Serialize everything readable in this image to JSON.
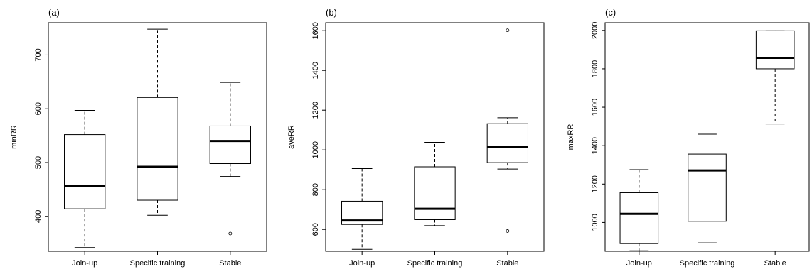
{
  "chart_data": [
    {
      "type": "boxplot",
      "panel_label": "(a)",
      "ylabel": "minRR",
      "xlabel": "",
      "categories": [
        "Join-up",
        "Specific training",
        "Stable"
      ],
      "ylim": [
        335,
        760
      ],
      "yticks": [
        400,
        500,
        600,
        700
      ],
      "boxes": [
        {
          "whisker_low": 342,
          "q1": 414,
          "median": 457,
          "q3": 552,
          "whisker_high": 597,
          "outliers": []
        },
        {
          "whisker_low": 402,
          "q1": 430,
          "median": 492,
          "q3": 621,
          "whisker_high": 748,
          "outliers": []
        },
        {
          "whisker_low": 474,
          "q1": 498,
          "median": 540,
          "q3": 568,
          "whisker_high": 649,
          "outliers": [
            368
          ]
        }
      ]
    },
    {
      "type": "boxplot",
      "panel_label": "(b)",
      "ylabel": "aveRR",
      "xlabel": "",
      "categories": [
        "Join-up",
        "Specific training",
        "Stable"
      ],
      "ylim": [
        490,
        1640
      ],
      "yticks": [
        600,
        800,
        1000,
        1200,
        1400,
        1600
      ],
      "boxes": [
        {
          "whisker_low": 500,
          "q1": 625,
          "median": 645,
          "q3": 742,
          "whisker_high": 906,
          "outliers": []
        },
        {
          "whisker_low": 619,
          "q1": 649,
          "median": 704,
          "q3": 915,
          "whisker_high": 1038,
          "outliers": []
        },
        {
          "whisker_low": 904,
          "q1": 936,
          "median": 1014,
          "q3": 1132,
          "whisker_high": 1162,
          "outliers": [
            1602,
            592
          ]
        }
      ]
    },
    {
      "type": "boxplot",
      "panel_label": "(c)",
      "ylabel": "maxRR",
      "xlabel": "",
      "categories": [
        "Join-up",
        "Specific training",
        "Stable"
      ],
      "ylim": [
        850,
        2040
      ],
      "yticks": [
        1000,
        1200,
        1400,
        1600,
        1800,
        2000
      ],
      "boxes": [
        {
          "whisker_low": 853,
          "q1": 890,
          "median": 1045,
          "q3": 1155,
          "whisker_high": 1275,
          "outliers": []
        },
        {
          "whisker_low": 894,
          "q1": 1006,
          "median": 1271,
          "q3": 1356,
          "whisker_high": 1460,
          "outliers": []
        },
        {
          "whisker_low": 1513,
          "q1": 1800,
          "median": 1857,
          "q3": 1998,
          "whisker_high": 1998,
          "outliers": []
        }
      ]
    }
  ]
}
